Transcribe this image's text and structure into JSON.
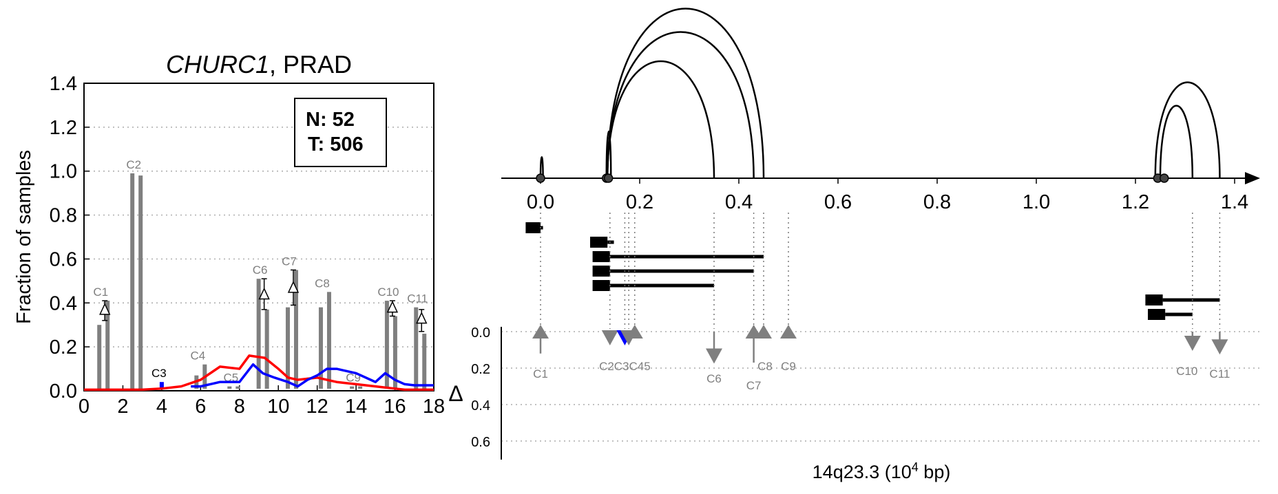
{
  "chart_data": [
    {
      "type": "bar",
      "title_italic": "CHURC1",
      "title_rest": ", PRAD",
      "ylabel": "Fraction of samples",
      "xlim": [
        0,
        18
      ],
      "ylim": [
        0,
        1.4
      ],
      "xticks": [
        0,
        2,
        4,
        6,
        8,
        10,
        12,
        14,
        16,
        18
      ],
      "yticks": [
        0.0,
        0.2,
        0.4,
        0.6,
        0.8,
        1.0,
        1.2,
        1.4
      ],
      "grid": "horizontal dotted",
      "legend_box": {
        "lines": [
          "N: 52",
          "T: 506"
        ],
        "position": "top-right"
      },
      "clusters": [
        {
          "label": "C1",
          "x": 1.0,
          "bars": [
            0.3,
            0.41
          ],
          "delta": 0.37,
          "delta_err": [
            0.32,
            0.41
          ],
          "delta_dir": "up",
          "label_color": "#7f7f7f"
        },
        {
          "label": "C2",
          "x": 2.7,
          "bars": [
            0.99,
            0.98
          ],
          "delta": null,
          "label_color": "#7f7f7f"
        },
        {
          "label": "C3",
          "x": 4.0,
          "bars": [
            0.04
          ],
          "delta": null,
          "label_color": "#000000",
          "bar_color": "#0000ff"
        },
        {
          "label": "C4",
          "x": 6.0,
          "bars": [
            0.07,
            0.12
          ],
          "delta": null,
          "label_color": "#7f7f7f"
        },
        {
          "label": "C5",
          "x": 7.7,
          "bars": [
            0.02,
            0.02
          ],
          "delta": null,
          "label_color": "#7f7f7f"
        },
        {
          "label": "C6",
          "x": 9.2,
          "bars": [
            0.51,
            0.37
          ],
          "delta": 0.44,
          "delta_err": [
            0.37,
            0.51
          ],
          "delta_dir": "up",
          "label_color": "#7f7f7f"
        },
        {
          "label": "C7",
          "x": 10.7,
          "bars": [
            0.38,
            0.55
          ],
          "delta": 0.47,
          "delta_err": [
            0.39,
            0.55
          ],
          "delta_dir": "up",
          "label_color": "#7f7f7f"
        },
        {
          "label": "C8",
          "x": 12.4,
          "bars": [
            0.38,
            0.45
          ],
          "delta": null,
          "label_color": "#7f7f7f"
        },
        {
          "label": "C9",
          "x": 14.0,
          "bars": [
            0.02,
            0.02
          ],
          "delta": null,
          "label_color": "#7f7f7f"
        },
        {
          "label": "C10",
          "x": 15.8,
          "bars": [
            0.41,
            0.34
          ],
          "delta": 0.38,
          "delta_err": [
            0.34,
            0.41
          ],
          "delta_dir": "up",
          "label_color": "#7f7f7f"
        },
        {
          "label": "C11",
          "x": 17.3,
          "bars": [
            0.38,
            0.26
          ],
          "delta": 0.33,
          "delta_err": [
            0.27,
            0.37
          ],
          "delta_dir": "up",
          "label_color": "#7f7f7f"
        }
      ],
      "series": [
        {
          "color": "#ff0000",
          "x": [
            0,
            3,
            4,
            5,
            6,
            7,
            8,
            8.5,
            9.3,
            10,
            10.5,
            11,
            12,
            12.5,
            13,
            14,
            15,
            16,
            16.5,
            17,
            18
          ],
          "values": [
            0.005,
            0.005,
            0.01,
            0.02,
            0.05,
            0.11,
            0.1,
            0.16,
            0.15,
            0.1,
            0.06,
            0.05,
            0.06,
            0.05,
            0.04,
            0.03,
            0.02,
            0.01,
            0.005,
            0.005,
            0.005
          ]
        },
        {
          "color": "#0000ff",
          "x": [
            5.5,
            6,
            6.5,
            7,
            8,
            8.7,
            9.2,
            9.8,
            10.5,
            11,
            11.5,
            12,
            12.5,
            13,
            14,
            15,
            15.5,
            16,
            16.5,
            17,
            18
          ],
          "values": [
            0.02,
            0.02,
            0.03,
            0.04,
            0.04,
            0.12,
            0.08,
            0.06,
            0.04,
            0.02,
            0.05,
            0.07,
            0.1,
            0.1,
            0.08,
            0.04,
            0.08,
            0.05,
            0.03,
            0.025,
            0.025
          ]
        }
      ]
    },
    {
      "type": "diagram",
      "xlabel": "14q23.3 (10",
      "xlabel_sup": "4",
      "xlabel_end": " bp)",
      "delta_label": "Δ",
      "xlim": [
        -0.08,
        1.42
      ],
      "xticks": [
        0.0,
        0.2,
        0.4,
        0.6,
        0.8,
        1.0,
        1.2,
        1.4
      ],
      "delta_yticks": [
        0.0,
        0.2,
        0.4,
        0.6
      ],
      "arcs": [
        {
          "start": 0.0,
          "end": 0.005,
          "height": 0.18
        },
        {
          "start": 0.133,
          "end": 0.142,
          "height": 0.4
        },
        {
          "start": 0.135,
          "end": 0.35,
          "height": 1.0
        },
        {
          "start": 0.135,
          "end": 0.43,
          "height": 1.25
        },
        {
          "start": 0.135,
          "end": 0.45,
          "height": 1.45
        },
        {
          "start": 1.25,
          "end": 1.315,
          "height": 0.62
        },
        {
          "start": 1.24,
          "end": 1.37,
          "height": 0.82
        }
      ],
      "junction_dots": [
        0.0,
        0.133,
        0.137,
        1.245,
        1.258
      ],
      "transcripts": [
        {
          "row": 0,
          "block_start": -0.03,
          "block_end": 0.0,
          "line_end": 0.005
        },
        {
          "row": 1,
          "block_start": 0.1,
          "block_end": 0.135,
          "line_end": 0.148
        },
        {
          "row": 2,
          "block_start": 0.105,
          "block_end": 0.14,
          "line_end": 0.45
        },
        {
          "row": 3,
          "block_start": 0.105,
          "block_end": 0.14,
          "line_end": 0.43
        },
        {
          "row": 4,
          "block_start": 0.105,
          "block_end": 0.14,
          "line_end": 0.35
        },
        {
          "row": 5,
          "block_start": 1.22,
          "block_end": 1.255,
          "line_end": 1.37
        },
        {
          "row": 6,
          "block_start": 1.225,
          "block_end": 1.26,
          "line_end": 1.315
        }
      ],
      "markers": [
        {
          "label": "C1",
          "x": 0.0,
          "dir": "up",
          "delta": 0.12
        },
        {
          "label": "C2",
          "x": 0.14,
          "dir": "down",
          "delta": 0.0
        },
        {
          "label": "C3",
          "x": 0.17,
          "dir": "down",
          "delta": 0.0,
          "color": "#0000ff"
        },
        {
          "label": "C4",
          "x": 0.178,
          "dir": "down",
          "delta": 0.0
        },
        {
          "label": "C5",
          "x": 0.19,
          "dir": "up",
          "delta": 0.0
        },
        {
          "label": "C6",
          "x": 0.35,
          "dir": "down",
          "delta": 0.1
        },
        {
          "label": "C7",
          "x": 0.43,
          "dir": "up",
          "delta": 0.17
        },
        {
          "label": "C8",
          "x": 0.45,
          "dir": "up",
          "delta": 0.0
        },
        {
          "label": "C9",
          "x": 0.5,
          "dir": "up",
          "delta": 0.0
        },
        {
          "label": "C10",
          "x": 1.315,
          "dir": "down",
          "delta": 0.03
        },
        {
          "label": "C11",
          "x": 1.37,
          "dir": "down",
          "delta": 0.05
        }
      ],
      "overlap_label": "C2C3C45"
    }
  ]
}
